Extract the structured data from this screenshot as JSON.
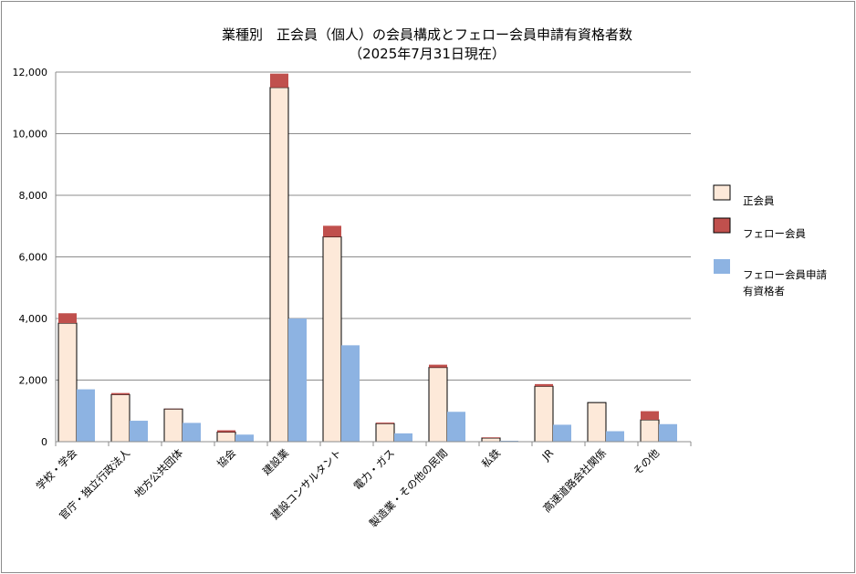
{
  "chart_data": {
    "type": "bar",
    "title": "業種別　正会員（個人）の会員構成とフェロー会員申請有資格者数",
    "subtitle": "（2025年7月31日現在）",
    "categories": [
      "学校・学会",
      "官庁・独立行政法人",
      "地方公共団体",
      "協会",
      "建設業",
      "建設コンサルタント",
      "電力・ガス",
      "製造業・その他の民間",
      "私鉄",
      "JR",
      "高速道路会社関係",
      "その他"
    ],
    "series": [
      {
        "name": "正会員",
        "color": "#fde9d9",
        "stack": "members",
        "values": [
          3850,
          1530,
          1060,
          310,
          11500,
          6650,
          590,
          2410,
          120,
          1800,
          1270,
          710
        ]
      },
      {
        "name": "フェロー会員",
        "color": "#c0504d",
        "stack": "members",
        "values": [
          320,
          50,
          10,
          60,
          450,
          360,
          30,
          90,
          20,
          70,
          0,
          280
        ]
      },
      {
        "name": "フェロー会員申請\n有資格者",
        "color": "#8db3e2",
        "stack": "eligible",
        "values": [
          1700,
          680,
          610,
          230,
          4000,
          3130,
          270,
          970,
          30,
          550,
          340,
          570
        ]
      }
    ],
    "ylim": [
      0,
      12000
    ],
    "yticks": [
      "0",
      "2,000",
      "4,000",
      "6,000",
      "8,000",
      "10,000",
      "12,000"
    ],
    "grid": true,
    "legend_position": "right"
  }
}
